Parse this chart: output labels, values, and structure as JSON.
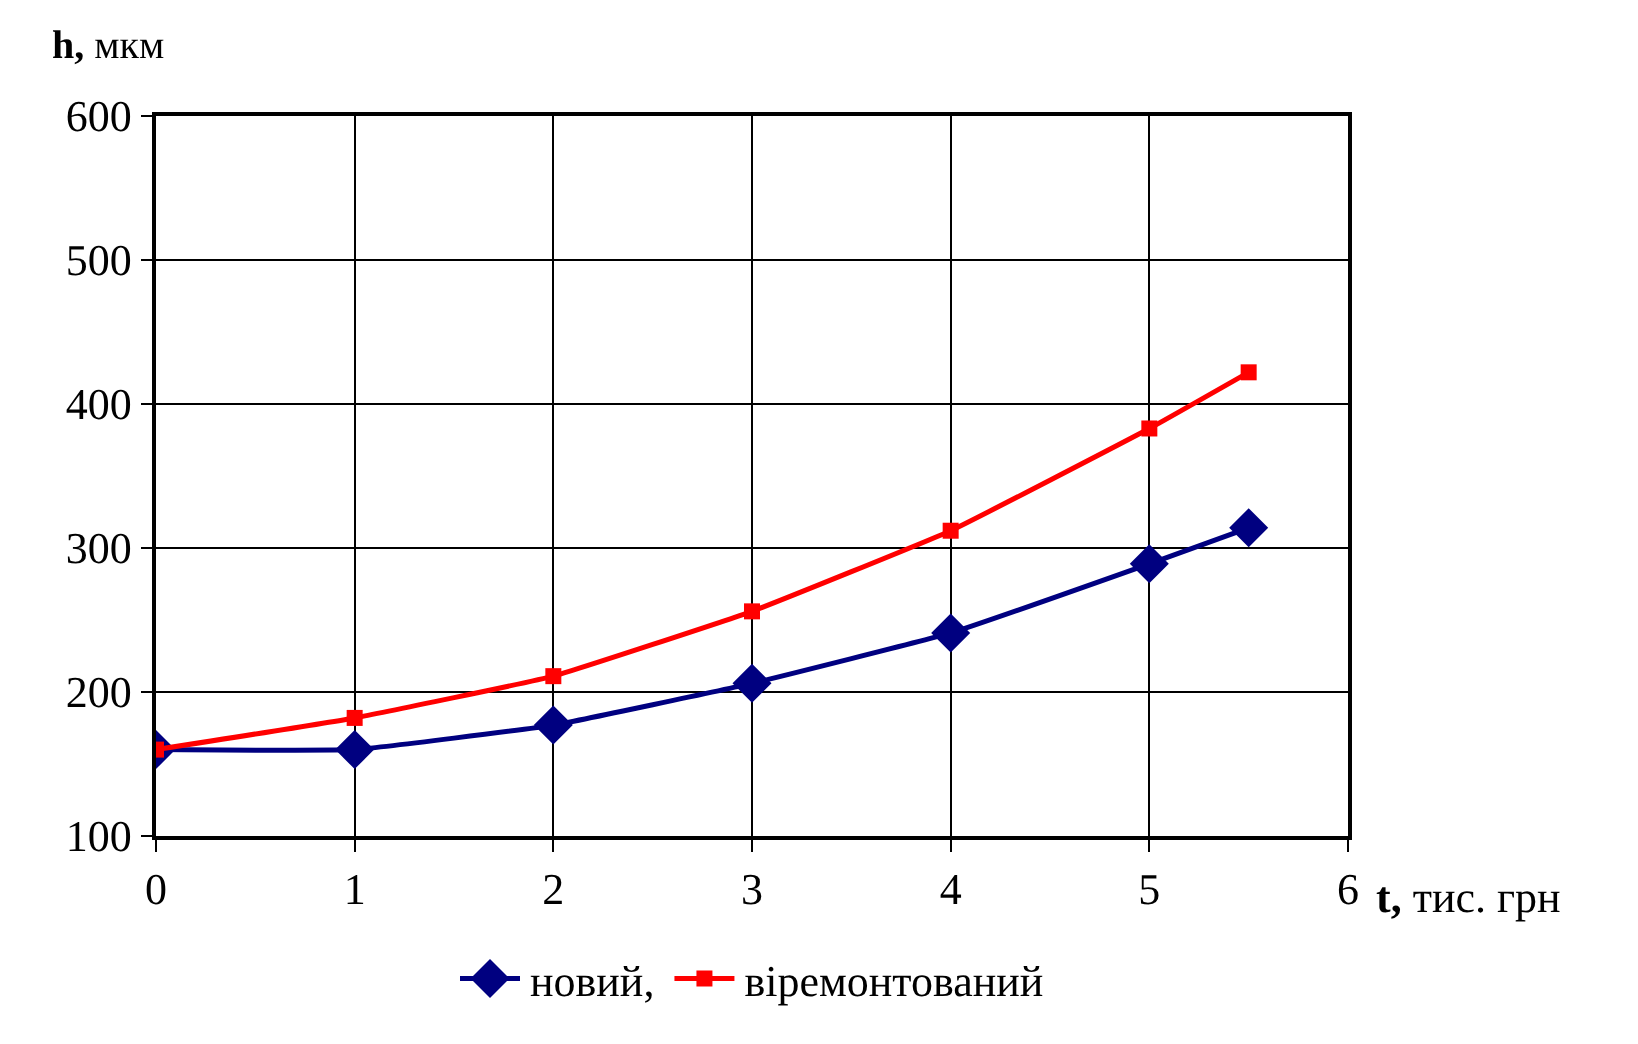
{
  "chart_data": {
    "type": "line",
    "xlabel": "t, тис. грн",
    "ylabel": "h, мкм",
    "x": [
      0,
      1,
      2,
      3,
      4,
      5,
      5.5
    ],
    "series": [
      {
        "name": "новий,",
        "color": "#000080",
        "marker": "diamond",
        "values": [
          160,
          160,
          177,
          206,
          241,
          289,
          314
        ]
      },
      {
        "name": "віремонтований",
        "color": "#ff0000",
        "marker": "square",
        "values": [
          160,
          182,
          211,
          256,
          312,
          383,
          422
        ]
      }
    ],
    "xlim": [
      0,
      6
    ],
    "xticks": [
      0,
      1,
      2,
      3,
      4,
      5,
      6
    ],
    "ylim": [
      100,
      600
    ],
    "yticks": [
      100,
      200,
      300,
      400,
      500,
      600
    ],
    "grid": true,
    "legend": "bottom",
    "line_style": "solid"
  }
}
